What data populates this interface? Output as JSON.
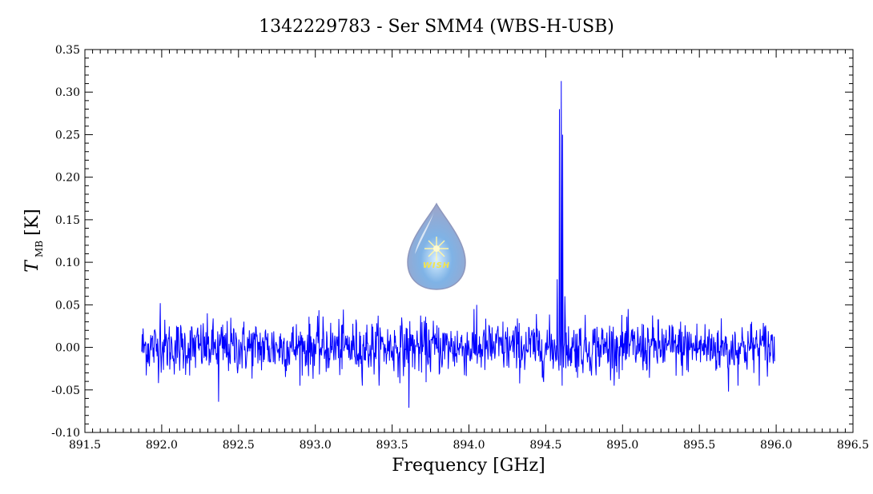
{
  "chart_data": {
    "type": "line",
    "title": "1342229783 - Ser SMM4 (WBS-H-USB)",
    "xlabel": "Frequency [GHz]",
    "ylabel_main": "T",
    "ylabel_sub": "MB",
    "ylabel_unit": "[K]",
    "xlim": [
      891.5,
      896.5
    ],
    "ylim": [
      -0.1,
      0.35
    ],
    "x_ticks": [
      "891.5",
      "892.0",
      "892.5",
      "893.0",
      "893.5",
      "894.0",
      "894.5",
      "895.0",
      "895.5",
      "896.0",
      "896.5"
    ],
    "y_ticks": [
      "-0.10",
      "-0.05",
      "0.00",
      "0.05",
      "0.10",
      "0.15",
      "0.20",
      "0.25",
      "0.30",
      "0.35"
    ],
    "x_tick_values": [
      891.5,
      892.0,
      892.5,
      893.0,
      893.5,
      894.0,
      894.5,
      895.0,
      895.5,
      896.0,
      896.5
    ],
    "y_tick_values": [
      -0.1,
      -0.05,
      0.0,
      0.05,
      0.1,
      0.15,
      0.2,
      0.25,
      0.3,
      0.35
    ],
    "grid": false,
    "series": [
      {
        "color": "#0000ff",
        "x_start": 891.87,
        "x_end": 895.99,
        "noise_rms": 0.016,
        "features": [
          {
            "x": 894.575,
            "y": 0.08
          },
          {
            "x": 894.59,
            "y": 0.28
          },
          {
            "x": 894.6,
            "y": 0.313
          },
          {
            "x": 894.61,
            "y": 0.25
          },
          {
            "x": 894.625,
            "y": 0.06
          },
          {
            "x": 893.61,
            "y": -0.071
          },
          {
            "x": 892.37,
            "y": -0.064
          },
          {
            "x": 891.99,
            "y": 0.052
          },
          {
            "x": 894.05,
            "y": 0.05
          },
          {
            "x": 895.69,
            "y": -0.052
          }
        ]
      }
    ]
  },
  "logo": {
    "text": "WISH",
    "icon": "water-drop-star-icon"
  }
}
